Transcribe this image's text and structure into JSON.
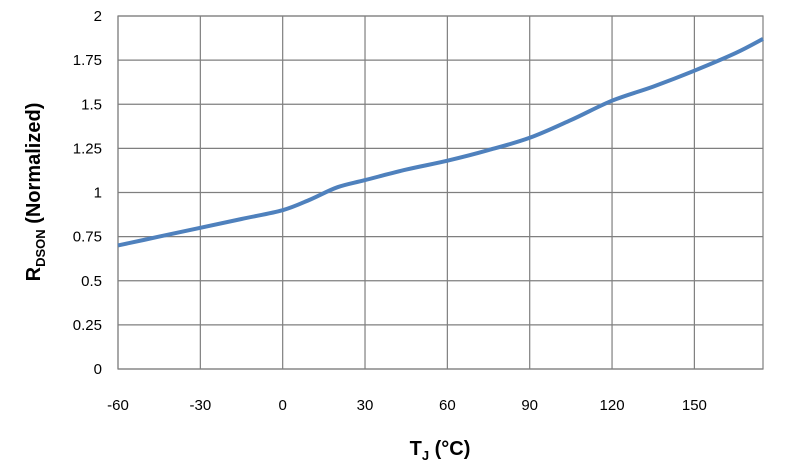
{
  "chart_data": {
    "type": "line",
    "xlabel": {
      "main": "T",
      "sub": "J",
      "suffix": " (°C)"
    },
    "ylabel": {
      "main": "R",
      "sub": "DSON",
      "suffix": " (Normalized)"
    },
    "xlim": [
      -60,
      175
    ],
    "ylim": [
      0,
      2
    ],
    "x_ticks": [
      -60,
      -30,
      0,
      30,
      60,
      90,
      120,
      150
    ],
    "y_ticks": [
      0,
      0.25,
      0.5,
      0.75,
      1,
      1.25,
      1.5,
      1.75,
      2
    ],
    "x_tick_labels": [
      "-60",
      "-30",
      "0",
      "30",
      "60",
      "90",
      "120",
      "150"
    ],
    "y_tick_labels": [
      "0",
      "0.25",
      "0.5",
      "0.75",
      "1",
      "1.25",
      "1.5",
      "1.75",
      "2"
    ],
    "grid": true,
    "legend": false,
    "colors": {
      "line": "#4f81bd",
      "grid": "#7f7f7f"
    },
    "series": [
      {
        "x": [
          -60,
          -45,
          -30,
          -15,
          0,
          10,
          20,
          30,
          45,
          60,
          75,
          90,
          105,
          120,
          135,
          150,
          165,
          175
        ],
        "y": [
          0.7,
          0.75,
          0.8,
          0.85,
          0.9,
          0.96,
          1.03,
          1.07,
          1.13,
          1.18,
          1.24,
          1.31,
          1.41,
          1.52,
          1.6,
          1.69,
          1.79,
          1.87
        ]
      }
    ]
  }
}
